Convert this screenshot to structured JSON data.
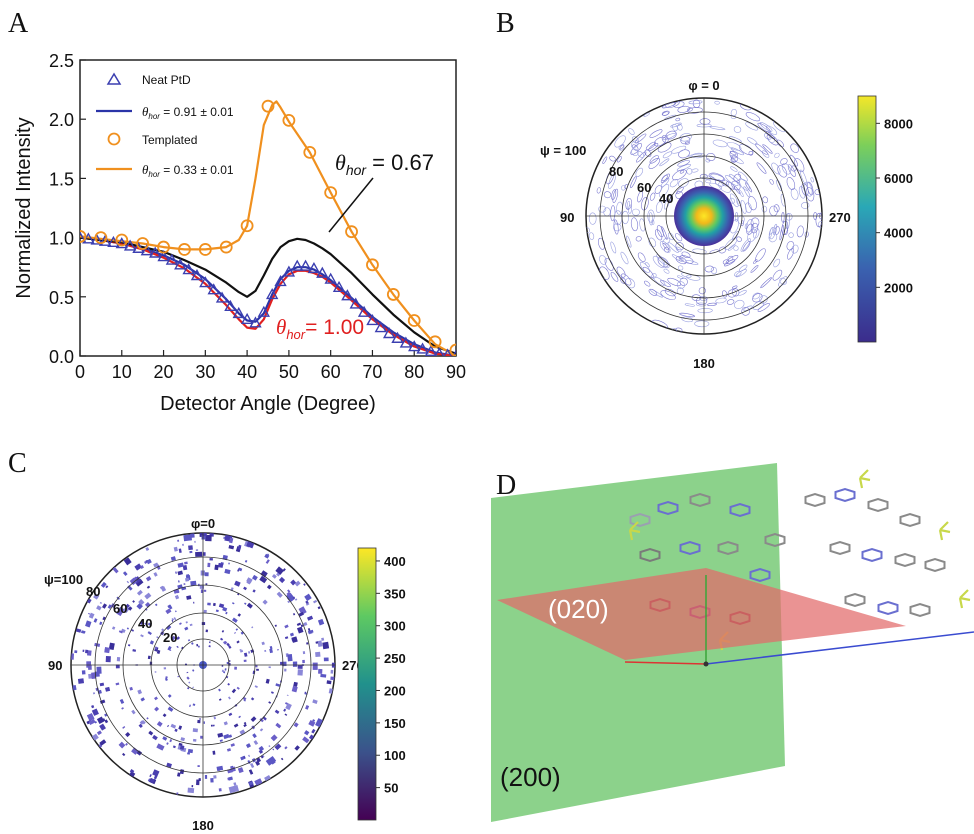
{
  "panels": {
    "a": {
      "letter": "A"
    },
    "b": {
      "letter": "B"
    },
    "c": {
      "letter": "C"
    },
    "d": {
      "letter": "D",
      "plane_green_label": "(200)",
      "plane_red_label": "(020)"
    }
  },
  "chart_data": [
    {
      "type": "line",
      "panel": "A",
      "title": "",
      "xlabel": "Detector Angle (Degree)",
      "ylabel": "Normalized Intensity",
      "xlim": [
        0,
        90
      ],
      "ylim": [
        0,
        2.5
      ],
      "xticks": [
        "0",
        "10",
        "20",
        "30",
        "40",
        "50",
        "60",
        "70",
        "80",
        "90"
      ],
      "yticks": [
        "0.0",
        "0.5",
        "1.0",
        "1.5",
        "2.0",
        "2.5"
      ],
      "legend_position": "top-left",
      "legend": [
        {
          "label": "Neat PtD",
          "marker": "triangle",
          "color": "#3b3fb0"
        },
        {
          "prefix": "θ",
          "sub": "hor",
          "label": " = 0.91 ± 0.01",
          "marker": "line",
          "color": "#2b34a8"
        },
        {
          "label": "Templated",
          "marker": "circle",
          "color": "#f0901e"
        },
        {
          "prefix": "θ",
          "sub": "hor",
          "label": " = 0.33 ± 0.01",
          "marker": "line",
          "color": "#f0901e"
        }
      ],
      "annotations": [
        {
          "prefix": "θ",
          "sub": "hor",
          "text": " = 0.67",
          "color": "#111111"
        },
        {
          "prefix": "θ",
          "sub": "hor",
          "text": "= 1.00",
          "color": "#e02020"
        }
      ],
      "series": [
        {
          "name": "Neat PtD",
          "kind": "markers-triangle",
          "color": "#3b3fb0",
          "x": [
            0,
            2,
            4,
            6,
            8,
            10,
            12,
            14,
            16,
            18,
            20,
            22,
            24,
            26,
            28,
            30,
            32,
            34,
            36,
            38,
            40,
            42,
            44,
            46,
            48,
            50,
            52,
            54,
            56,
            58,
            60,
            62,
            64,
            66,
            68,
            70,
            72,
            74,
            76,
            78,
            80,
            82,
            84,
            86,
            88,
            90
          ],
          "y": [
            1.0,
            0.99,
            0.98,
            0.97,
            0.96,
            0.95,
            0.93,
            0.91,
            0.89,
            0.87,
            0.84,
            0.81,
            0.77,
            0.73,
            0.68,
            0.62,
            0.56,
            0.49,
            0.42,
            0.36,
            0.31,
            0.28,
            0.37,
            0.52,
            0.63,
            0.71,
            0.76,
            0.76,
            0.74,
            0.7,
            0.65,
            0.58,
            0.51,
            0.44,
            0.37,
            0.3,
            0.24,
            0.19,
            0.15,
            0.11,
            0.08,
            0.06,
            0.04,
            0.02,
            0.01,
            0.0
          ]
        },
        {
          "name": "Neat PtD fit",
          "kind": "line",
          "color": "#2b34a8",
          "x": [
            0,
            5,
            10,
            15,
            20,
            25,
            30,
            35,
            38,
            40,
            42,
            44,
            46,
            48,
            50,
            52,
            54,
            56,
            58,
            60,
            65,
            70,
            75,
            80,
            85,
            90
          ],
          "y": [
            1.0,
            0.98,
            0.95,
            0.91,
            0.85,
            0.77,
            0.65,
            0.48,
            0.36,
            0.3,
            0.29,
            0.36,
            0.52,
            0.65,
            0.72,
            0.75,
            0.75,
            0.73,
            0.69,
            0.64,
            0.49,
            0.33,
            0.2,
            0.1,
            0.03,
            0.0
          ]
        },
        {
          "name": "θhor = 1.00 curve",
          "kind": "line",
          "color": "#e02020",
          "x": [
            0,
            5,
            10,
            15,
            20,
            25,
            30,
            35,
            38,
            40,
            42,
            44,
            46,
            48,
            50,
            52,
            54,
            56,
            58,
            60,
            65,
            70,
            75,
            80,
            85,
            90
          ],
          "y": [
            1.0,
            0.98,
            0.95,
            0.9,
            0.83,
            0.74,
            0.61,
            0.43,
            0.31,
            0.24,
            0.23,
            0.31,
            0.48,
            0.61,
            0.69,
            0.72,
            0.72,
            0.7,
            0.67,
            0.62,
            0.47,
            0.31,
            0.18,
            0.08,
            0.02,
            0.0
          ]
        },
        {
          "name": "θhor = 0.67 curve",
          "kind": "line",
          "color": "#111111",
          "x": [
            0,
            5,
            10,
            15,
            20,
            25,
            30,
            35,
            38,
            40,
            42,
            44,
            46,
            48,
            50,
            52,
            54,
            56,
            58,
            60,
            65,
            70,
            75,
            80,
            85,
            90
          ],
          "y": [
            1.0,
            0.98,
            0.96,
            0.92,
            0.88,
            0.81,
            0.73,
            0.62,
            0.54,
            0.5,
            0.55,
            0.68,
            0.82,
            0.92,
            0.97,
            0.99,
            0.98,
            0.95,
            0.91,
            0.86,
            0.7,
            0.52,
            0.35,
            0.2,
            0.08,
            0.02
          ]
        },
        {
          "name": "Templated",
          "kind": "markers-circle",
          "color": "#f0901e",
          "x": [
            0,
            5,
            10,
            15,
            20,
            25,
            30,
            35,
            40,
            45,
            50,
            55,
            60,
            65,
            70,
            75,
            80,
            85,
            90
          ],
          "y": [
            1.01,
            1.0,
            0.98,
            0.95,
            0.92,
            0.9,
            0.9,
            0.92,
            1.1,
            2.11,
            1.99,
            1.72,
            1.38,
            1.05,
            0.77,
            0.52,
            0.3,
            0.12,
            0.05
          ]
        },
        {
          "name": "Templated fit",
          "kind": "line",
          "color": "#f0901e",
          "x": [
            0,
            5,
            10,
            15,
            20,
            25,
            30,
            35,
            38,
            40,
            42,
            44,
            46,
            47,
            48,
            50,
            55,
            60,
            65,
            70,
            75,
            80,
            85,
            90
          ],
          "y": [
            1.01,
            0.99,
            0.97,
            0.95,
            0.92,
            0.9,
            0.9,
            0.92,
            0.98,
            1.1,
            1.5,
            1.95,
            2.12,
            2.15,
            2.1,
            1.98,
            1.72,
            1.38,
            1.05,
            0.77,
            0.52,
            0.3,
            0.1,
            0.0
          ]
        }
      ]
    },
    {
      "type": "heatmap",
      "panel": "B",
      "polar": true,
      "top_label": "φ = 0",
      "left_label": "ψ = 100",
      "right_label": "270",
      "bottom_label": "180",
      "west_label": "90",
      "ring_labels": [
        "80",
        "60",
        "40"
      ],
      "colorbar": {
        "min": 0,
        "max": 9000,
        "ticks": [
          "2000",
          "4000",
          "6000",
          "8000"
        ]
      }
    },
    {
      "type": "heatmap",
      "panel": "C",
      "polar": true,
      "top_label": "φ=0",
      "left_label": "ψ=100",
      "right_label": "270",
      "bottom_label": "180",
      "west_label": "90",
      "ring_labels": [
        "80",
        "60",
        "40",
        "20"
      ],
      "colorbar": {
        "min": 0,
        "max": 420,
        "ticks": [
          "50",
          "100",
          "150",
          "200",
          "250",
          "300",
          "350",
          "400"
        ]
      }
    }
  ]
}
